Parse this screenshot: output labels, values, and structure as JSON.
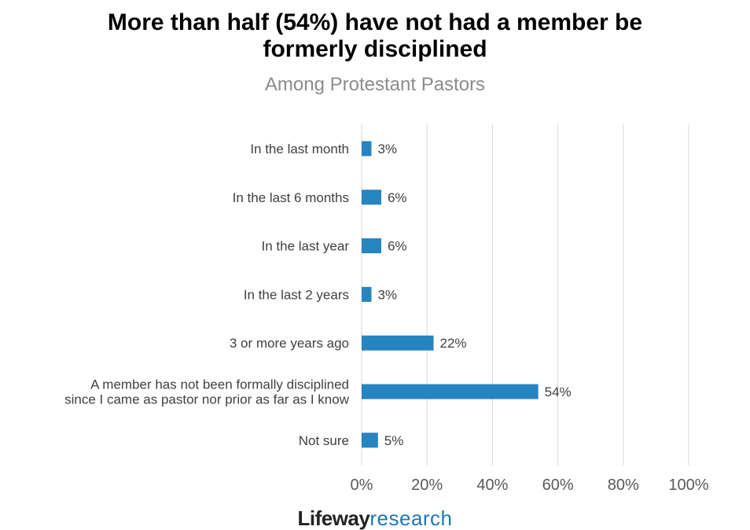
{
  "logo": {
    "brand": "Lifeway",
    "suffix": "research"
  },
  "chart_data": {
    "type": "bar",
    "orientation": "horizontal",
    "title_lines": [
      "More than half (54%) have not had a member be",
      "formerly disciplined"
    ],
    "subtitle": "Among Protestant Pastors",
    "categories": [
      [
        "In the last month"
      ],
      [
        "In the last 6 months"
      ],
      [
        "In the last year"
      ],
      [
        "In the last 2 years"
      ],
      [
        "3 or more years ago"
      ],
      [
        "A member has not been formally disciplined",
        "since I came as pastor nor prior as far as I know"
      ],
      [
        "Not sure"
      ]
    ],
    "values": [
      3,
      6,
      6,
      3,
      22,
      54,
      5
    ],
    "value_labels": [
      "3%",
      "6%",
      "6%",
      "3%",
      "22%",
      "54%",
      "5%"
    ],
    "xlim": [
      0,
      100
    ],
    "x_ticks": [
      0,
      20,
      40,
      60,
      80,
      100
    ],
    "x_tick_labels": [
      "0%",
      "20%",
      "40%",
      "60%",
      "80%",
      "100%"
    ],
    "grid": true,
    "colors": {
      "bar": "#2684c0",
      "grid": "#d9d9d9",
      "label": "#404040",
      "tick": "#595959"
    }
  }
}
